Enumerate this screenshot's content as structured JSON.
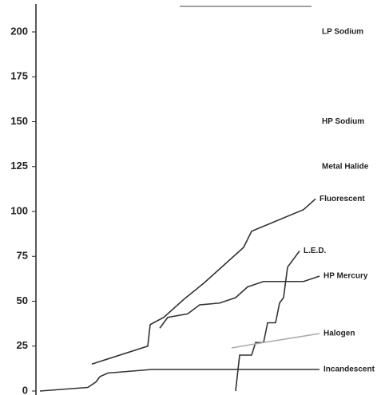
{
  "chart_data": {
    "type": "line",
    "xlim": [
      0,
      355
    ],
    "ylim": [
      0,
      200
    ],
    "yticks": [
      0,
      25,
      50,
      75,
      100,
      125,
      150,
      175,
      200
    ],
    "annotations": [
      {
        "text": "LP Sodium",
        "y": 200
      },
      {
        "text": "HP Sodium",
        "y": 150
      },
      {
        "text": "Metal Halide",
        "y": 125
      }
    ],
    "series": [
      {
        "name": "Fluorescent",
        "color": "#333333",
        "x": [
          70,
          140,
          143,
          160,
          185,
          210,
          240,
          260,
          270,
          335,
          350
        ],
        "values": [
          15,
          25,
          37,
          41,
          51,
          60,
          72,
          80,
          89,
          101,
          107
        ]
      },
      {
        "name": "L.E.D.",
        "color": "#333333",
        "x": [
          250,
          255,
          270,
          275,
          285,
          290,
          300,
          305,
          310,
          315,
          330
        ],
        "values": [
          0,
          20,
          20,
          27,
          27,
          38,
          38,
          49,
          52,
          69,
          78
        ]
      },
      {
        "name": "HP Mercury",
        "color": "#333333",
        "x": [
          155,
          165,
          190,
          205,
          230,
          250,
          265,
          285,
          335,
          355
        ],
        "values": [
          35,
          41,
          43,
          48,
          49,
          52,
          58,
          61,
          61,
          64
        ]
      },
      {
        "name": "Halogen",
        "color": "#aaaaaa",
        "x": [
          245,
          285,
          355
        ],
        "values": [
          24,
          27,
          32
        ]
      },
      {
        "name": "Incandescent",
        "color": "#333333",
        "x": [
          5,
          65,
          75,
          80,
          90,
          145,
          355
        ],
        "values": [
          0,
          2,
          5,
          8,
          10,
          12,
          12
        ]
      }
    ]
  }
}
